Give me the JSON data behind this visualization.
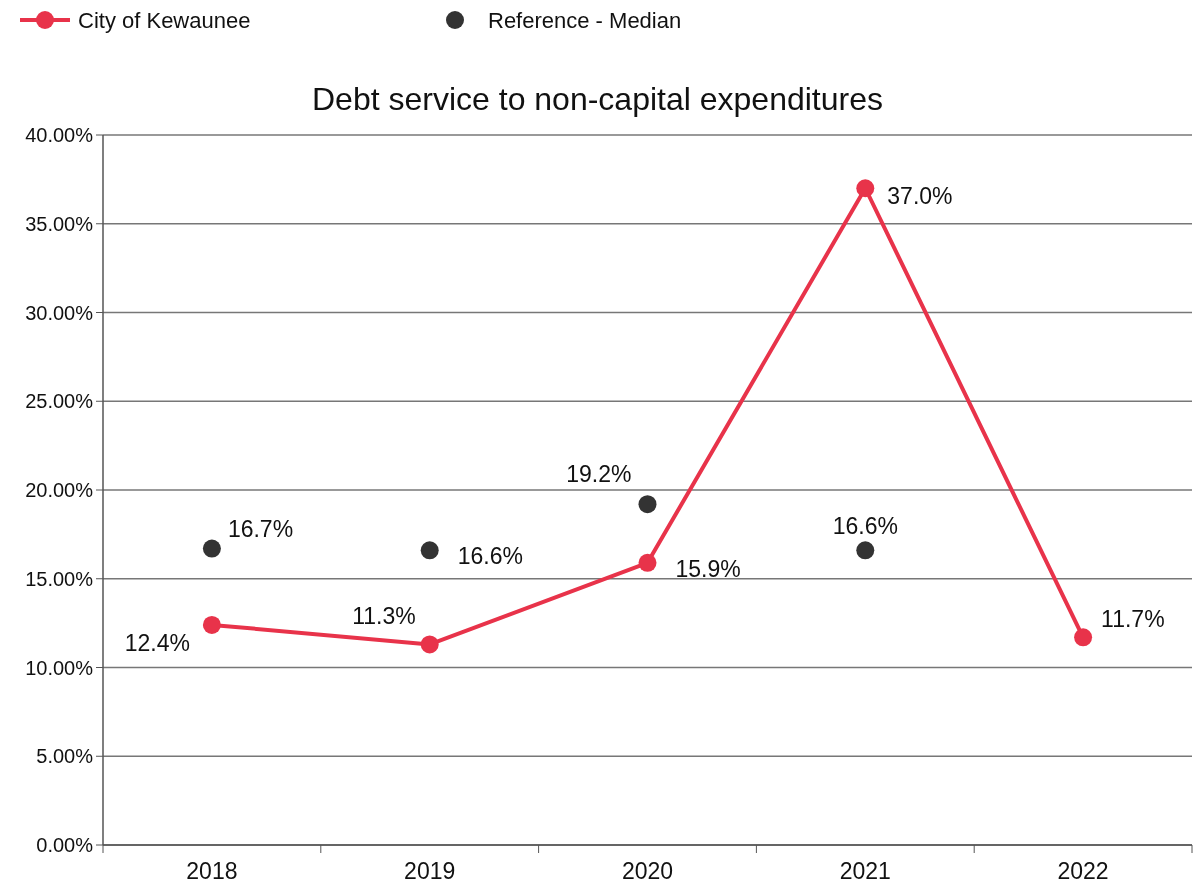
{
  "chart_data": {
    "type": "line",
    "title": "Debt service to non-capital expenditures",
    "categories": [
      "2018",
      "2019",
      "2020",
      "2021",
      "2022"
    ],
    "series": [
      {
        "name": "City of Kewaunee",
        "color": "#e8334a",
        "values": [
          12.4,
          11.3,
          15.9,
          37.0,
          11.7
        ],
        "value_labels": [
          "12.4%",
          "11.3%",
          "15.9%",
          "37.0%",
          "11.7%"
        ]
      },
      {
        "name": "Reference - Median",
        "type": "scatter",
        "color": "#333333",
        "values": [
          16.7,
          16.6,
          19.2,
          16.6,
          null
        ],
        "value_labels": [
          "16.7%",
          "16.6%",
          "19.2%",
          "16.6%",
          null
        ]
      }
    ],
    "ylim": [
      0,
      40
    ],
    "yticks": [
      {
        "value": 0,
        "label": "0.00%"
      },
      {
        "value": 5,
        "label": "5.00%"
      },
      {
        "value": 10,
        "label": "10.00%"
      },
      {
        "value": 15,
        "label": "15.00%"
      },
      {
        "value": 20,
        "label": "20.00%"
      },
      {
        "value": 25,
        "label": "25.00%"
      },
      {
        "value": 30,
        "label": "30.00%"
      },
      {
        "value": 35,
        "label": "35.00%"
      },
      {
        "value": 40,
        "label": "40.00%"
      }
    ],
    "grid": "y",
    "legend": "top left",
    "marker": "circle",
    "line_style": "solid"
  }
}
